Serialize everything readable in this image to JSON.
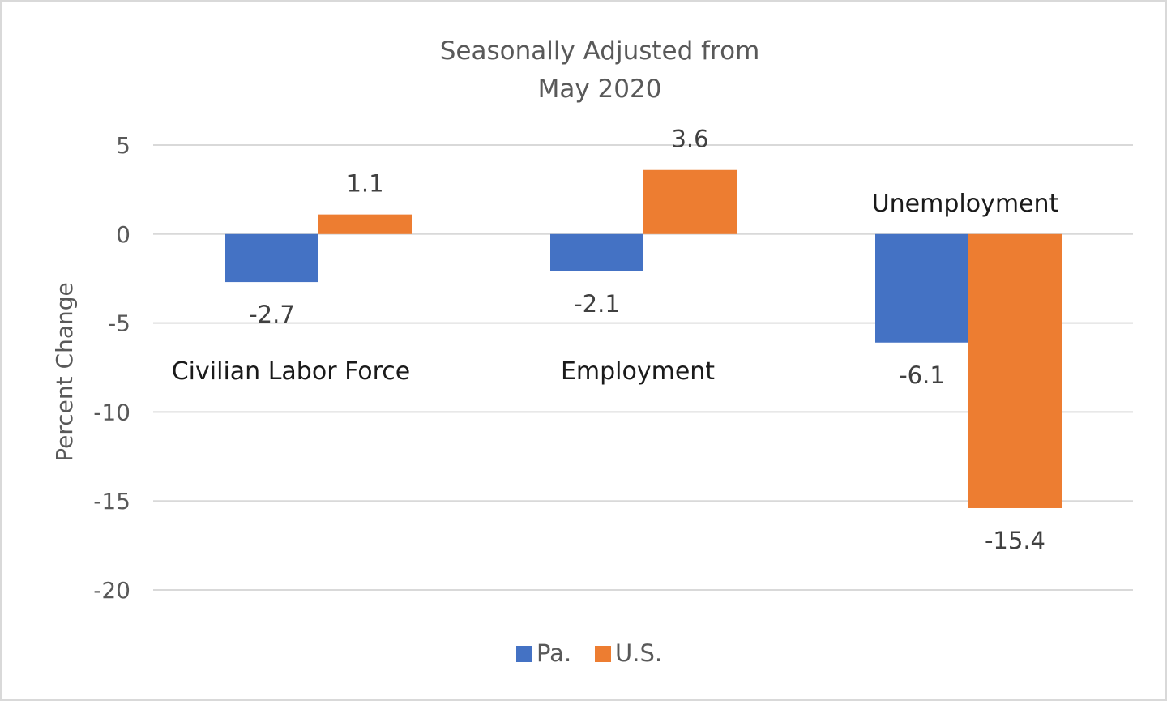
{
  "chart_data": {
    "type": "bar",
    "title": "Seasonally Adjusted from",
    "subtitle": "May 2020",
    "ylabel": "Percent Change",
    "xlabel": "",
    "ylim": [
      -20,
      5
    ],
    "yticks": [
      5,
      0,
      -5,
      -10,
      -15,
      -20
    ],
    "ytick_labels": [
      "5",
      "0",
      "-5",
      "-10",
      "-15",
      "-20"
    ],
    "grid": true,
    "legend_position": "bottom",
    "categories": [
      "Civilian Labor Force",
      "Employment",
      "Unemployment"
    ],
    "series": [
      {
        "name": "Pa.",
        "color": "#4472c4",
        "values": [
          -2.7,
          -2.1,
          -6.1
        ],
        "labels": [
          "-2.7",
          "-2.1",
          "-6.1"
        ]
      },
      {
        "name": "U.S.",
        "color": "#ed7d31",
        "values": [
          1.1,
          3.6,
          -15.4
        ],
        "labels": [
          "1.1",
          "3.6",
          "-15.4"
        ]
      }
    ]
  }
}
